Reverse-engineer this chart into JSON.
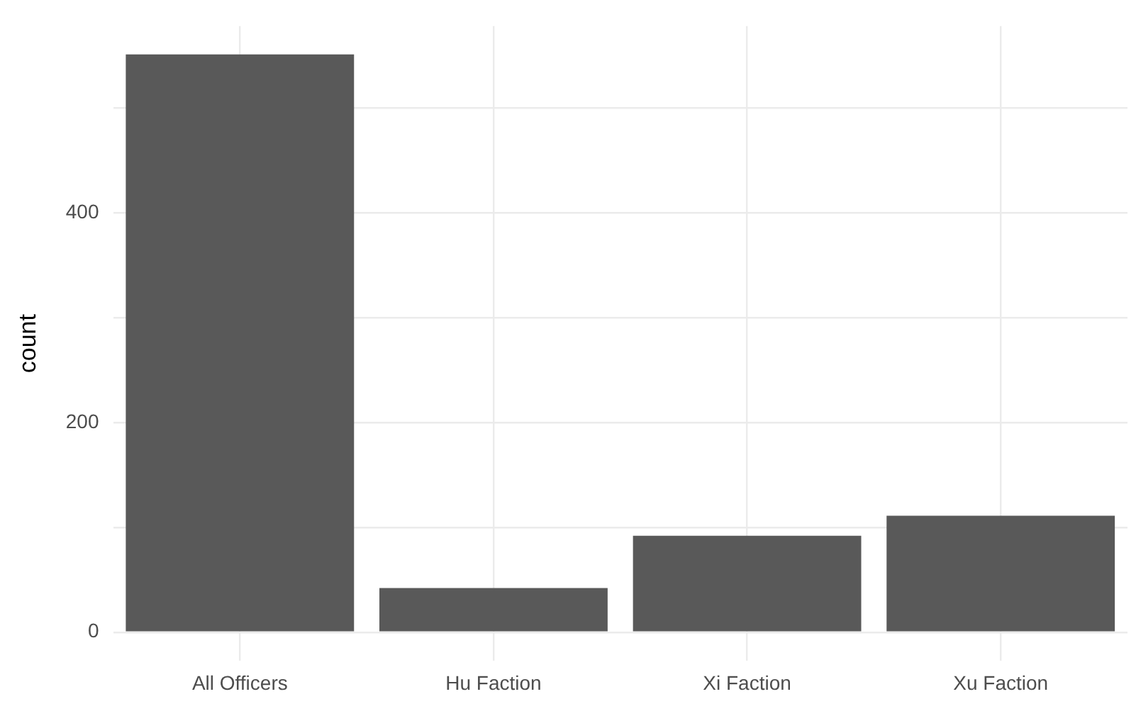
{
  "chart_data": {
    "type": "bar",
    "ylabel": "count",
    "categories": [
      "All Officers",
      "Hu Faction",
      "Xi Faction",
      "Xu Faction"
    ],
    "values": [
      551,
      42,
      92,
      111
    ],
    "color": "#595959",
    "ylim": [
      -27.5,
      578
    ],
    "yticks": [
      0,
      {
        "value": 100,
        "label": null
      },
      200,
      {
        "value": 300,
        "label": null
      },
      400,
      {
        "value": 500,
        "label": null
      }
    ],
    "grid": true
  }
}
